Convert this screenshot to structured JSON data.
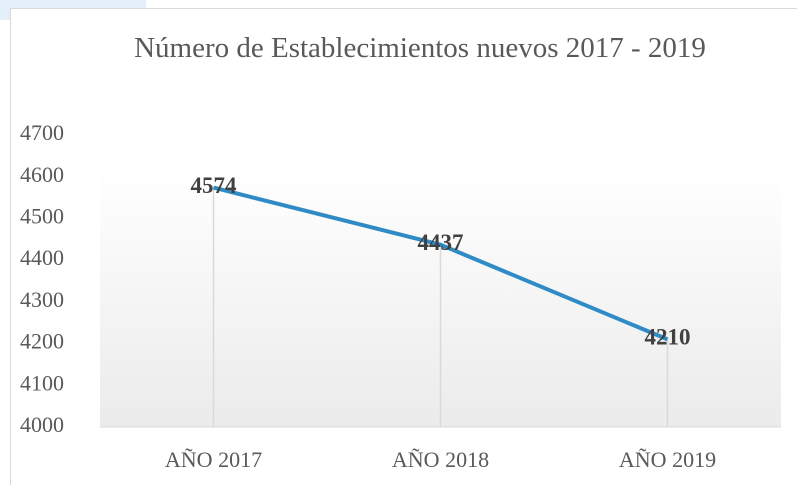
{
  "chart_data": {
    "type": "line",
    "title": "Número de Establecimientos nuevos 2017 - 2019",
    "categories": [
      "AÑO 2017",
      "AÑO 2018",
      "AÑO 2019"
    ],
    "series": [
      {
        "color": "#2e8bc5",
        "values": [
          4574,
          4437,
          4210
        ]
      }
    ],
    "ylim": [
      4000,
      4700
    ],
    "yticks": [
      4000,
      4100,
      4200,
      4300,
      4400,
      4500,
      4600,
      4700
    ],
    "drop_lines": true,
    "data_labels": true
  }
}
